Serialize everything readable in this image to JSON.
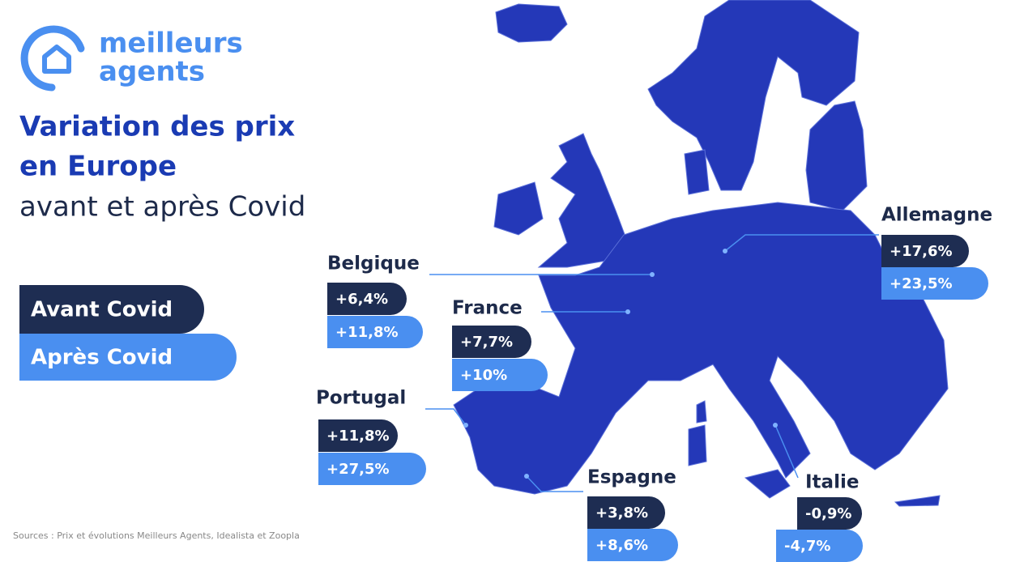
{
  "logo": {
    "line1": "meilleurs",
    "line2": "agents"
  },
  "header": {
    "title_line1": "Variation des prix",
    "title_line2": "en Europe",
    "subtitle": "avant et après Covid"
  },
  "legend": {
    "before": "Avant Covid",
    "after": "Après Covid"
  },
  "countries": [
    {
      "name": "Belgique",
      "before": "+6,4%",
      "after": "+11,8%"
    },
    {
      "name": "France",
      "before": "+7,7%",
      "after": "+10%"
    },
    {
      "name": "Portugal",
      "before": "+11,8%",
      "after": "+27,5%"
    },
    {
      "name": "Espagne",
      "before": "+3,8%",
      "after": "+8,6%"
    },
    {
      "name": "Italie",
      "before": "-0,9%",
      "after": "-4,7%"
    },
    {
      "name": "Allemagne",
      "before": "+17,6%",
      "after": "+23,5%"
    }
  ],
  "source": "Sources : Prix et évolutions Meilleurs Agents, Idealista et Zoopla"
}
